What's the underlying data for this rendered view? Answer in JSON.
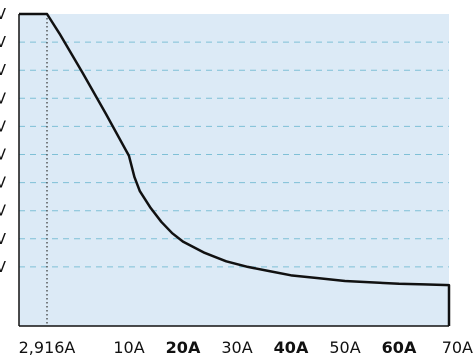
{
  "chart_data": {
    "type": "line",
    "title": "",
    "xlabel": "",
    "ylabel": "",
    "grid": true,
    "colors": {
      "plot_background": "#dceaf6",
      "grid": "#7fc0d6",
      "line": "#111111",
      "axis": "#111111",
      "marker_line": "#333333"
    },
    "x_ticks": [
      {
        "value": 2.916,
        "label": "2,916A",
        "bold": false
      },
      {
        "value": 10,
        "label": "10A",
        "bold": false
      },
      {
        "value": 20,
        "label": "20A",
        "bold": true
      },
      {
        "value": 30,
        "label": "30A",
        "bold": false
      },
      {
        "value": 40,
        "label": "40A",
        "bold": true
      },
      {
        "value": 50,
        "label": "50A",
        "bold": false
      },
      {
        "value": 60,
        "label": "60A",
        "bold": true
      },
      {
        "value": 70,
        "label": "70A",
        "bold": false
      }
    ],
    "y_tick_labels": [
      "V",
      "V",
      "V",
      "V",
      "V",
      "V",
      "V",
      "V",
      "V",
      "V"
    ],
    "marker_line_x": 2.916,
    "xlim": [
      0,
      70
    ],
    "ylim": [
      0,
      10
    ],
    "series": [
      {
        "x": [
          0,
          2.916,
          4,
          6,
          8,
          10,
          11,
          12,
          14,
          16,
          18,
          20,
          24,
          28,
          32,
          36,
          40,
          45,
          50,
          55,
          60,
          65,
          70,
          70
        ],
        "y": [
          10,
          10,
          9.3,
          7.9,
          6.45,
          4.95,
          4.2,
          3.7,
          3.1,
          2.6,
          2.2,
          1.9,
          1.5,
          1.2,
          1.0,
          0.85,
          0.7,
          0.6,
          0.5,
          0.45,
          0.4,
          0.38,
          0.35,
          -0.2
        ]
      }
    ]
  }
}
